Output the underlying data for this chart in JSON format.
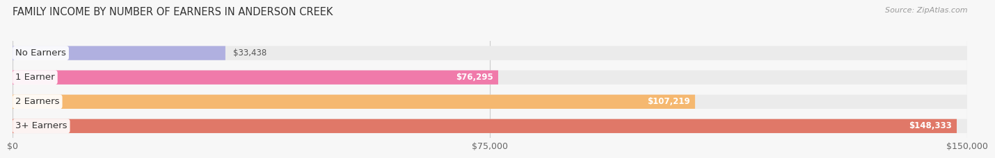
{
  "title": "FAMILY INCOME BY NUMBER OF EARNERS IN ANDERSON CREEK",
  "source": "Source: ZipAtlas.com",
  "categories": [
    "No Earners",
    "1 Earner",
    "2 Earners",
    "3+ Earners"
  ],
  "values": [
    33438,
    76295,
    107219,
    148333
  ],
  "value_labels": [
    "$33,438",
    "$76,295",
    "$107,219",
    "$148,333"
  ],
  "bar_colors": [
    "#b0b0e0",
    "#f07aaa",
    "#f5b870",
    "#e07868"
  ],
  "bar_bg_color": "#ebebeb",
  "background_color": "#f7f7f7",
  "xlim": [
    0,
    150000
  ],
  "xtick_values": [
    0,
    75000,
    150000
  ],
  "xtick_labels": [
    "$0",
    "$75,000",
    "$150,000"
  ],
  "title_fontsize": 10.5,
  "source_fontsize": 8,
  "label_fontsize": 9.5,
  "value_fontsize": 8.5,
  "value_inside_threshold": 0.5
}
